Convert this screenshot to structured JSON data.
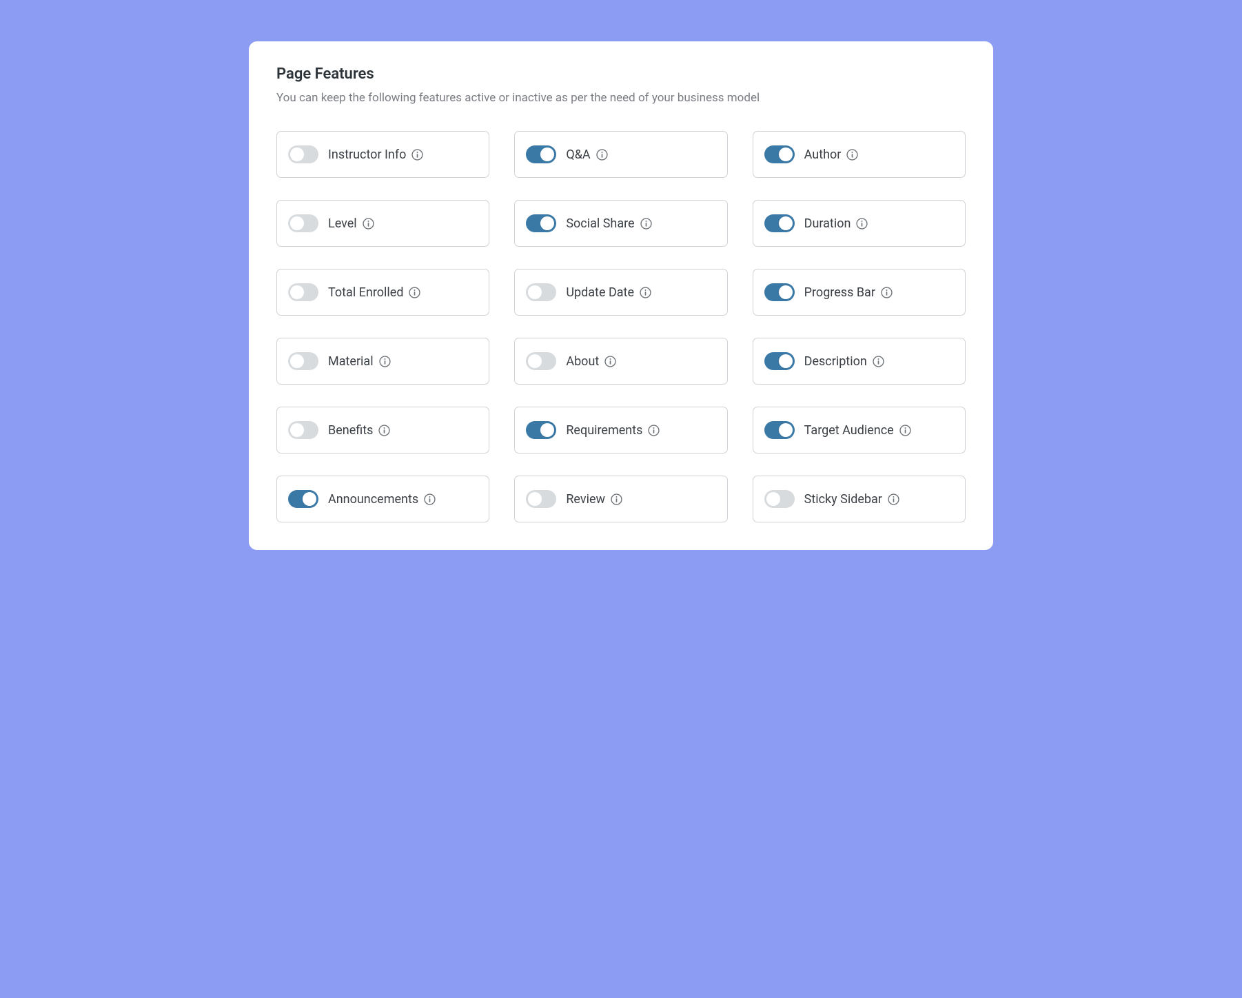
{
  "card": {
    "title": "Page Features",
    "description": "You can keep the following features active or inactive as per the need of your business model"
  },
  "colors": {
    "background": "#8c9cf2",
    "card_bg": "#ffffff",
    "title_color": "#2c3338",
    "description_color": "#7a7e84",
    "label_color": "#3b4046",
    "border_color": "#cfd2d6",
    "toggle_on": "#3a79a6",
    "toggle_off": "#d8dbde",
    "info_icon": "#6f7479"
  },
  "features": [
    {
      "id": "instructor-info",
      "label": "Instructor Info",
      "enabled": false
    },
    {
      "id": "qa",
      "label": "Q&A",
      "enabled": true
    },
    {
      "id": "author",
      "label": "Author",
      "enabled": true
    },
    {
      "id": "level",
      "label": "Level",
      "enabled": false
    },
    {
      "id": "social-share",
      "label": "Social Share",
      "enabled": true
    },
    {
      "id": "duration",
      "label": "Duration",
      "enabled": true
    },
    {
      "id": "total-enrolled",
      "label": "Total Enrolled",
      "enabled": false
    },
    {
      "id": "update-date",
      "label": "Update Date",
      "enabled": false
    },
    {
      "id": "progress-bar",
      "label": "Progress Bar",
      "enabled": true
    },
    {
      "id": "material",
      "label": "Material",
      "enabled": false
    },
    {
      "id": "about",
      "label": "About",
      "enabled": false
    },
    {
      "id": "description",
      "label": "Description",
      "enabled": true
    },
    {
      "id": "benefits",
      "label": "Benefits",
      "enabled": false
    },
    {
      "id": "requirements",
      "label": "Requirements",
      "enabled": true
    },
    {
      "id": "target-audience",
      "label": "Target Audience",
      "enabled": true
    },
    {
      "id": "announcements",
      "label": "Announcements",
      "enabled": true
    },
    {
      "id": "review",
      "label": "Review",
      "enabled": false
    },
    {
      "id": "sticky-sidebar",
      "label": "Sticky Sidebar",
      "enabled": false
    }
  ]
}
